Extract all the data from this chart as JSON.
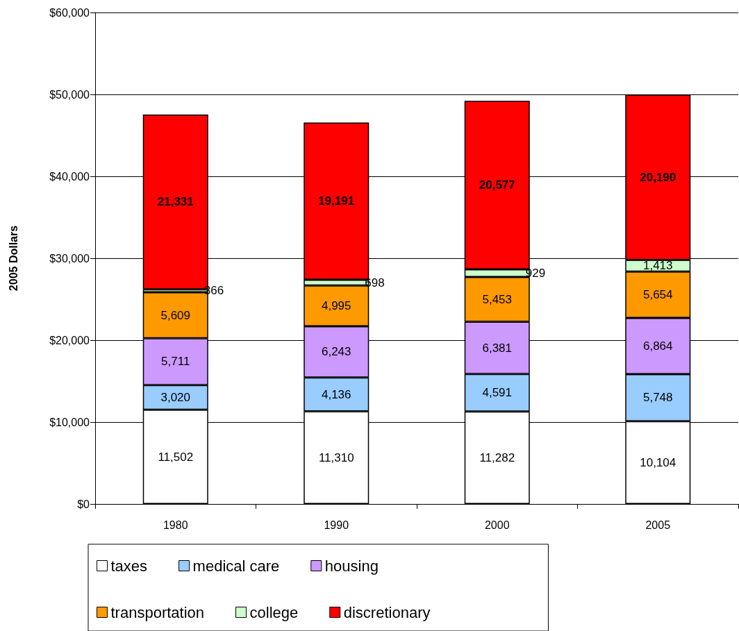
{
  "chart_data": {
    "type": "bar",
    "stacked": true,
    "ylabel": "2005 Dollars",
    "categories": [
      "1980",
      "1990",
      "2000",
      "2005"
    ],
    "series": [
      {
        "name": "taxes",
        "color": "#ffffff",
        "values": [
          11502,
          11310,
          11282,
          10104
        ],
        "value_labels": [
          "11,502",
          "11,310",
          "11,282",
          "10,104"
        ]
      },
      {
        "name": "medical care",
        "color": "#99ccff",
        "values": [
          3020,
          4136,
          4591,
          5748
        ],
        "value_labels": [
          "3,020",
          "4,136",
          "4,591",
          "5,748"
        ]
      },
      {
        "name": "housing",
        "color": "#cc99ff",
        "values": [
          5711,
          6243,
          6381,
          6864
        ],
        "value_labels": [
          "5,711",
          "6,243",
          "6,381",
          "6,864"
        ]
      },
      {
        "name": "transportation",
        "color": "#ff9900",
        "values": [
          5609,
          4995,
          5453,
          5654
        ],
        "value_labels": [
          "5,609",
          "4,995",
          "5,453",
          "5,654"
        ]
      },
      {
        "name": "college",
        "color": "#ccffcc",
        "values": [
          366,
          698,
          929,
          1413
        ],
        "value_labels": [
          "366",
          "698",
          "929",
          "1,413"
        ]
      },
      {
        "name": "discretionary",
        "color": "#ff0000",
        "values": [
          21331,
          19191,
          20577,
          20190
        ],
        "value_labels": [
          "21,331",
          "19,191",
          "20,577",
          "20,190"
        ]
      }
    ],
    "ylim": [
      0,
      60000
    ],
    "yticks": [
      {
        "value": 0,
        "label": "$0"
      },
      {
        "value": 10000,
        "label": "$10,000"
      },
      {
        "value": 20000,
        "label": "$20,000"
      },
      {
        "value": 30000,
        "label": "$30,000"
      },
      {
        "value": 40000,
        "label": "$40,000"
      },
      {
        "value": 50000,
        "label": "$50,000"
      },
      {
        "value": 60000,
        "label": "$60,000"
      }
    ],
    "grid": "y",
    "legend": "bottom"
  }
}
